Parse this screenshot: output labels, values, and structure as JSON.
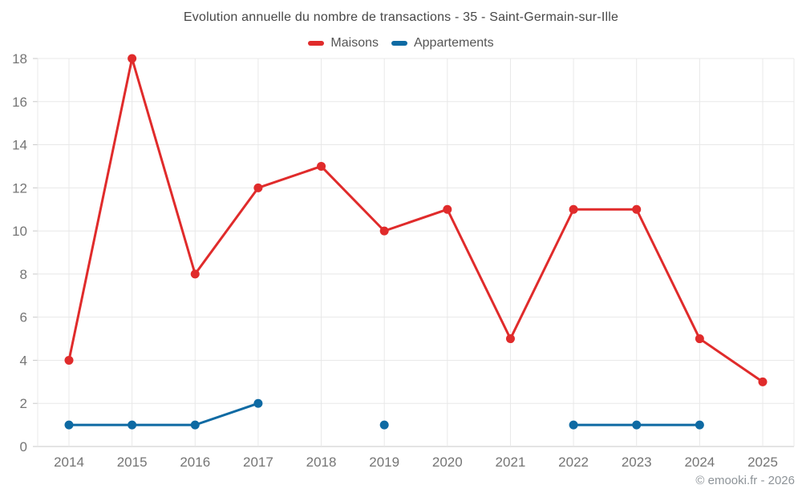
{
  "chart_data": {
    "type": "line",
    "title": "Evolution annuelle du nombre de transactions - 35 - Saint-Germain-sur-Ille",
    "categories": [
      "2014",
      "2015",
      "2016",
      "2017",
      "2018",
      "2019",
      "2020",
      "2021",
      "2022",
      "2023",
      "2024",
      "2025"
    ],
    "series": [
      {
        "name": "Maisons",
        "color": "#e02b2b",
        "values": [
          4,
          18,
          8,
          12,
          13,
          10,
          11,
          5,
          11,
          11,
          5,
          3
        ]
      },
      {
        "name": "Appartements",
        "color": "#0e6aa3",
        "values": [
          1,
          1,
          1,
          2,
          null,
          1,
          null,
          null,
          1,
          1,
          1,
          null
        ]
      }
    ],
    "xlabel": "",
    "ylabel": "",
    "ylim": [
      0,
      18
    ],
    "ytick_step": 2,
    "grid": true,
    "legend_position": "top"
  },
  "footer": {
    "copyright": "© emooki.fr - 2026"
  },
  "colors": {
    "grid": "#e8e8e8",
    "axis": "#c9c9c9",
    "tick_label": "#757575",
    "title": "#474747",
    "legend_label": "#555555",
    "footer": "#8d9398",
    "background": "#ffffff"
  }
}
